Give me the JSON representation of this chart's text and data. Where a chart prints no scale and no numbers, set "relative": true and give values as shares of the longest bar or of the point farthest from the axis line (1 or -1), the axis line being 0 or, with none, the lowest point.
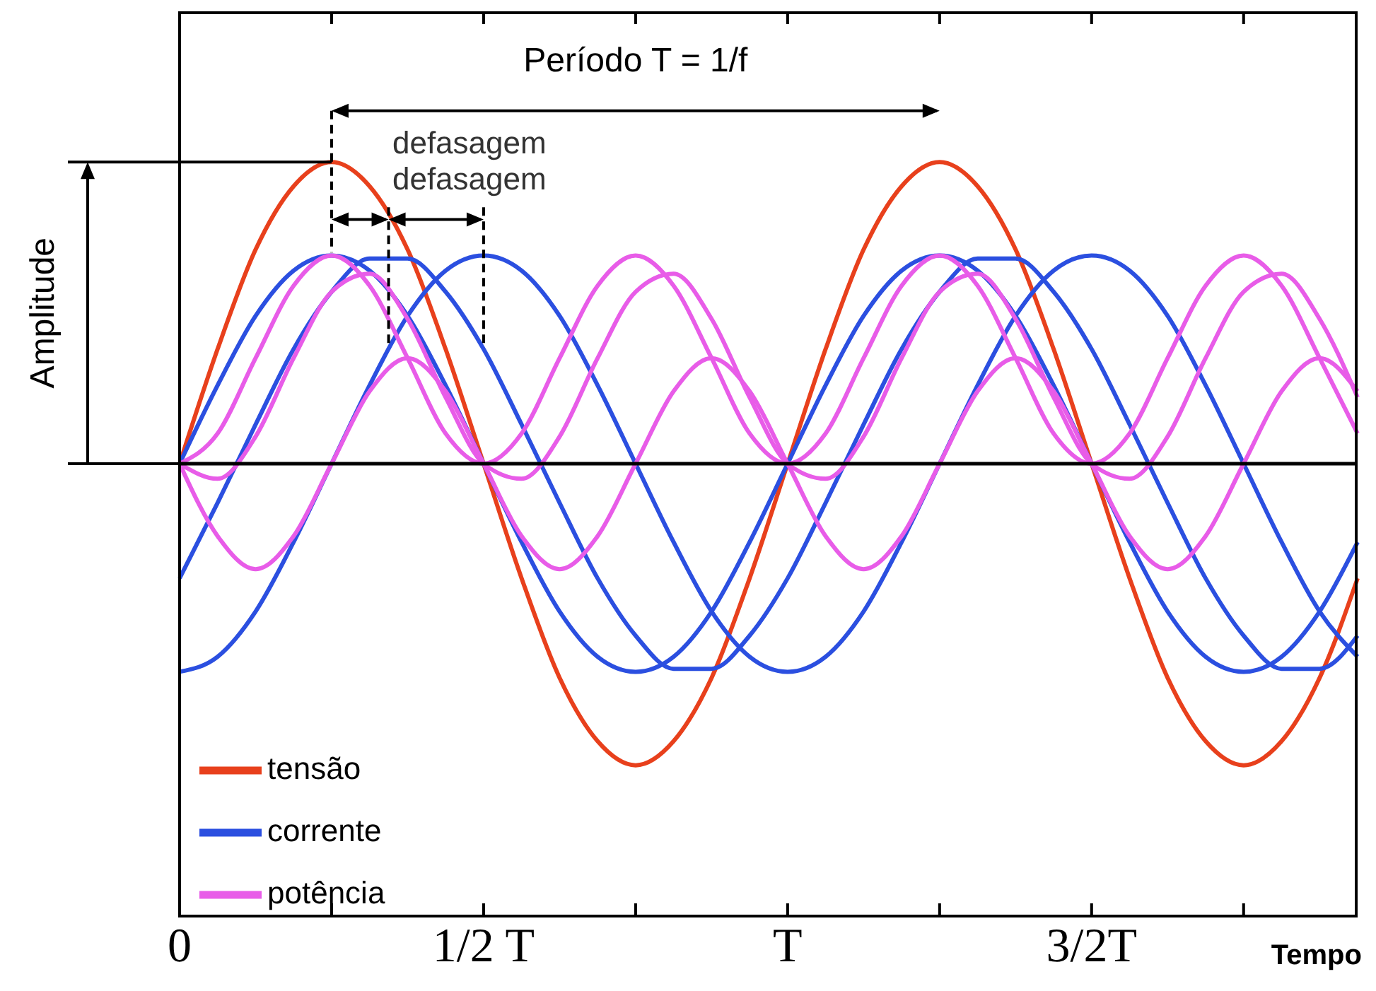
{
  "chart_data": {
    "type": "line",
    "relative": true,
    "xlabel": "Tempo",
    "ylabel": "Amplitude",
    "annotations": [
      "Período T = 1/f",
      "defasagem",
      "defasagem"
    ],
    "categories": [
      "0",
      null,
      null,
      null,
      null,
      null,
      null,
      null,
      "1/2 T",
      null,
      null,
      null,
      null,
      null,
      null,
      null,
      "T",
      null,
      null,
      null,
      null,
      null,
      null,
      null,
      "3/2T",
      null,
      null,
      null,
      null,
      null,
      null,
      null
    ],
    "tick_labels": "x",
    "marker": "none",
    "line_style": "solid",
    "grid": false,
    "legend": "bottom left",
    "series": [
      {
        "name": "tensão",
        "color": "#e8401c",
        "values": [
          0,
          0.38,
          0.71,
          0.92,
          1,
          0.92,
          0.71,
          0.38,
          0,
          -0.38,
          -0.71,
          -0.92,
          -1,
          -0.92,
          -0.71,
          -0.38,
          0,
          0.38,
          0.71,
          0.92,
          1,
          0.92,
          0.71,
          0.38,
          0,
          -0.38,
          -0.71,
          -0.92,
          -1,
          -0.92,
          -0.71,
          -0.38
        ]
      },
      {
        "name": "corrente",
        "color": "#2b4fe0",
        "values": [
          0,
          0.26,
          0.49,
          0.64,
          0.69,
          0.64,
          0.49,
          0.26,
          0,
          -0.26,
          -0.49,
          -0.64,
          -0.69,
          -0.64,
          -0.49,
          -0.26,
          0,
          0.26,
          0.49,
          0.64,
          0.69,
          0.64,
          0.49,
          0.26,
          0,
          -0.26,
          -0.49,
          -0.64,
          -0.69,
          -0.64,
          -0.49,
          -0.26
        ]
      },
      {
        "color": "#2b4fe0",
        "values": [
          -0.38,
          -0.13,
          0.13,
          0.38,
          0.57,
          0.68,
          0.68,
          0.57,
          0.38,
          0.13,
          -0.13,
          -0.38,
          -0.57,
          -0.68,
          -0.68,
          -0.57,
          -0.38,
          -0.13,
          0.13,
          0.38,
          0.57,
          0.68,
          0.68,
          0.57,
          0.38,
          0.13,
          -0.13,
          -0.38,
          -0.57,
          -0.68,
          -0.68,
          -0.57
        ]
      },
      {
        "color": "#2b4fe0",
        "values": [
          -0.69,
          -0.64,
          -0.49,
          -0.26,
          0,
          0.26,
          0.49,
          0.64,
          0.69,
          0.64,
          0.49,
          0.26,
          0,
          -0.26,
          -0.49,
          -0.64,
          -0.69,
          -0.64,
          -0.49,
          -0.26,
          0,
          0.26,
          0.49,
          0.64,
          0.69,
          0.64,
          0.49,
          0.26,
          0,
          -0.26,
          -0.49,
          -0.64
        ]
      },
      {
        "name": "potência",
        "color": "#e85ce8",
        "values": [
          0,
          0.1,
          0.35,
          0.59,
          0.69,
          0.59,
          0.35,
          0.1,
          0,
          0.1,
          0.35,
          0.59,
          0.69,
          0.59,
          0.35,
          0.1,
          0,
          0.1,
          0.35,
          0.59,
          0.69,
          0.59,
          0.35,
          0.1,
          0,
          0.1,
          0.35,
          0.59,
          0.69,
          0.59,
          0.35,
          0.1
        ]
      },
      {
        "color": "#e85ce8",
        "values": [
          0,
          -0.05,
          0.09,
          0.35,
          0.57,
          0.63,
          0.48,
          0.22,
          0,
          -0.05,
          0.09,
          0.35,
          0.57,
          0.63,
          0.48,
          0.22,
          0,
          -0.05,
          0.09,
          0.35,
          0.57,
          0.63,
          0.48,
          0.22,
          0,
          -0.05,
          0.09,
          0.35,
          0.57,
          0.63,
          0.48,
          0.22
        ]
      },
      {
        "color": "#e85ce8",
        "values": [
          0,
          -0.24,
          -0.35,
          -0.24,
          0,
          0.24,
          0.35,
          0.24,
          0,
          -0.24,
          -0.35,
          -0.24,
          0,
          0.24,
          0.35,
          0.24,
          0,
          -0.24,
          -0.35,
          -0.24,
          0,
          0.24,
          0.35,
          0.24,
          0,
          -0.24,
          -0.35,
          -0.24,
          0,
          0.24,
          0.35,
          0.24
        ]
      }
    ]
  }
}
